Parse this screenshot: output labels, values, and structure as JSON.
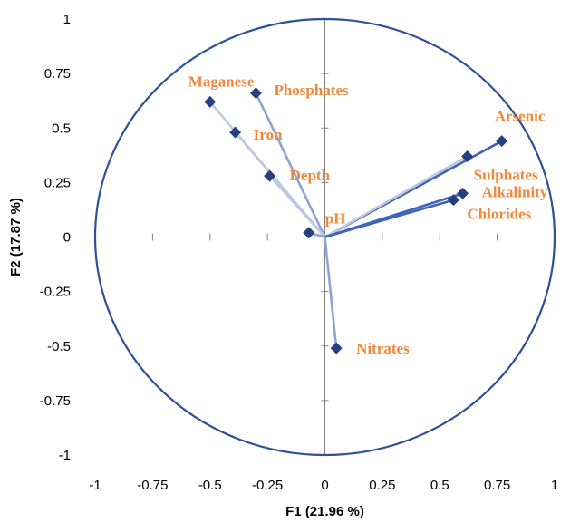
{
  "chart_data": {
    "type": "scatter",
    "subtype": "correlation-circle",
    "xlabel": "F1 (21.96 %)",
    "ylabel": "F2 (17.87 %)",
    "xlim": [
      -1,
      1
    ],
    "ylim": [
      -1,
      1
    ],
    "xticks": [
      "-1",
      "-0.75",
      "-0.5",
      "-0.25",
      "0",
      "0.25",
      "0.5",
      "0.75",
      "1"
    ],
    "yticks": [
      "-1",
      "-0.75",
      "-0.5",
      "-0.25",
      "0",
      "0.25",
      "0.5",
      "0.75",
      "1"
    ],
    "grid": false,
    "unit_circle": true,
    "colors": {
      "circle": "#2f4f9a",
      "marker": "#24407f",
      "label": "#f0883c",
      "vector_light": "#c0c8e0",
      "vector_mid": "#8fa2d4",
      "vector_dark": "#3e64b8",
      "axis": "#808080"
    },
    "variables": [
      {
        "name": "Maganese",
        "x": -0.5,
        "y": 0.62,
        "vector_color": "vector_light"
      },
      {
        "name": "Phosphates",
        "x": -0.3,
        "y": 0.66,
        "vector_color": "vector_mid"
      },
      {
        "name": "Iron",
        "x": -0.39,
        "y": 0.48,
        "vector_color": "vector_light"
      },
      {
        "name": "Depth",
        "x": -0.24,
        "y": 0.28,
        "vector_color": "vector_light"
      },
      {
        "name": "pH",
        "x": -0.07,
        "y": 0.02,
        "vector_color": "vector_mid"
      },
      {
        "name": "Arsenic",
        "x": 0.77,
        "y": 0.44,
        "vector_color": "vector_dark"
      },
      {
        "name": "Sulphates",
        "x": 0.62,
        "y": 0.37,
        "vector_color": "vector_light"
      },
      {
        "name": "Alkalinity",
        "x": 0.6,
        "y": 0.2,
        "vector_color": "vector_dark"
      },
      {
        "name": "Chlorides",
        "x": 0.56,
        "y": 0.17,
        "vector_color": "vector_dark"
      },
      {
        "name": "Nitrates",
        "x": 0.05,
        "y": -0.51,
        "vector_color": "vector_mid"
      }
    ]
  }
}
